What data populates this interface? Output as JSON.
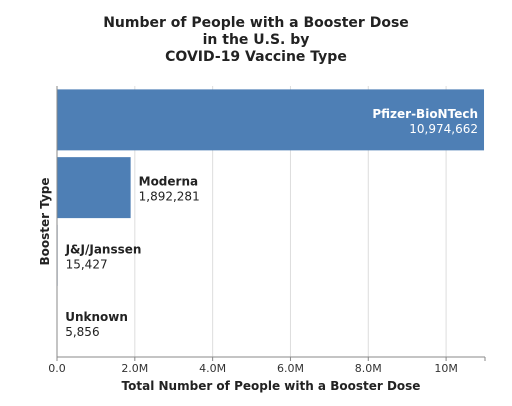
{
  "chart_data": {
    "type": "bar",
    "orientation": "horizontal",
    "title_lines": [
      "Number of People with a Booster Dose",
      "in the U.S. by",
      "COVID-19 Vaccine Type"
    ],
    "xlabel": "Total Number of People with a Booster Dose",
    "ylabel": "Booster Type",
    "xlim": [
      0,
      11000000
    ],
    "xticks": [
      {
        "value": 0,
        "label": "0.0"
      },
      {
        "value": 2000000,
        "label": "2.0M"
      },
      {
        "value": 4000000,
        "label": "4.0M"
      },
      {
        "value": 6000000,
        "label": "6.0M"
      },
      {
        "value": 8000000,
        "label": "8.0M"
      },
      {
        "value": 10000000,
        "label": "10M"
      }
    ],
    "grid": true,
    "bar_color": "#4e7fb5",
    "categories": [
      "Pfizer-BioNTech",
      "Moderna",
      "J&J/Janssen",
      "Unknown"
    ],
    "values": [
      10974662,
      1892281,
      15427,
      5856
    ],
    "value_labels": [
      "10,974,662",
      "1,892,281",
      "15,427",
      "5,856"
    ]
  }
}
